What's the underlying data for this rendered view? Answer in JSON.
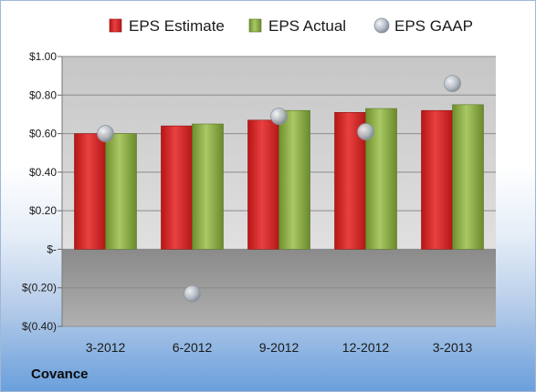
{
  "company": "Covance",
  "colors": {
    "estimate": "#d42a2a",
    "actual": "#8fb04a",
    "gaap": "#b9c1ca"
  },
  "chart_data": {
    "type": "bar",
    "categories": [
      "3-2012",
      "6-2012",
      "9-2012",
      "12-2012",
      "3-2013"
    ],
    "series": [
      {
        "name": "EPS Estimate",
        "type": "bar",
        "values": [
          0.6,
          0.64,
          0.67,
          0.71,
          0.72
        ]
      },
      {
        "name": "EPS Actual",
        "type": "bar",
        "values": [
          0.6,
          0.65,
          0.72,
          0.73,
          0.75
        ]
      },
      {
        "name": "EPS GAAP",
        "type": "scatter",
        "values": [
          0.6,
          -0.23,
          0.69,
          0.61,
          0.86
        ]
      }
    ],
    "ylim": [
      -0.4,
      1.0
    ],
    "yticks": [
      1.0,
      0.8,
      0.6,
      0.4,
      0.2,
      0,
      -0.2,
      -0.4
    ],
    "ytick_labels": [
      "$1.00",
      "$0.80",
      "$0.60",
      "$0.40",
      "$0.20",
      "$-",
      "$(0.20)",
      "$(0.40)"
    ],
    "legend_position": "top",
    "grid": true
  }
}
